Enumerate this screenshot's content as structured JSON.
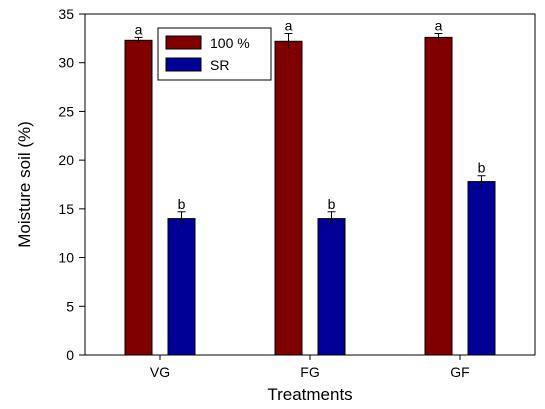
{
  "chart_data": {
    "type": "bar",
    "title": "",
    "xlabel": "Treatments",
    "ylabel": "Moisture soil (%)",
    "categories": [
      "VG",
      "FG",
      "GF"
    ],
    "ylim": [
      0,
      35
    ],
    "yticks": [
      0,
      5,
      10,
      15,
      20,
      25,
      30,
      35
    ],
    "grid": false,
    "legend_position": "top-left",
    "series": [
      {
        "name": "100 %",
        "color": "#800000",
        "values": [
          32.3,
          32.2,
          32.6
        ],
        "errors": [
          0.3,
          0.8,
          0.4
        ],
        "significance": [
          "a",
          "a",
          "a"
        ]
      },
      {
        "name": "SR",
        "color": "#000099",
        "values": [
          14.0,
          14.0,
          17.8
        ],
        "errors": [
          0.7,
          0.7,
          0.6
        ],
        "significance": [
          "b",
          "b",
          "b"
        ]
      }
    ]
  }
}
